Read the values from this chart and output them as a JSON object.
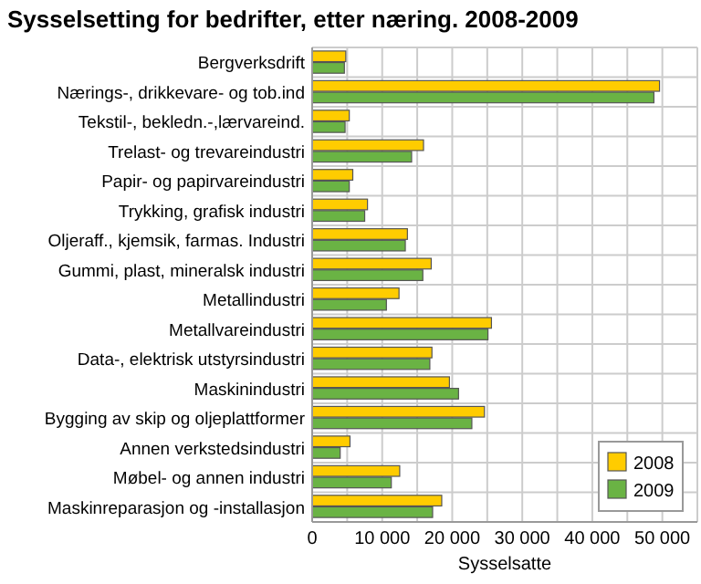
{
  "chart_data": {
    "type": "bar",
    "orientation": "horizontal",
    "title": "Sysselsetting for bedrifter, etter næring. 2008-2009",
    "xlabel": "Sysselsatte",
    "categories": [
      "Bergverksdrift",
      "Nærings-, drikkevare- og tob.ind",
      "Tekstil-, bekledn.-,lærvareind.",
      "Trelast- og trevareindustri",
      "Papir- og papirvareindustri",
      "Trykking, grafisk industri",
      "Oljeraff., kjemsik, farmas. Industri",
      "Gummi, plast, mineralsk industri",
      "Metallindustri",
      "Metallvareindustri",
      "Data-, elektrisk utstyrsindustri",
      "Maskinindustri",
      "Bygging av skip og oljeplattformer",
      "Annen verkstedsindustri",
      "Møbel- og annen industri",
      "Maskinreparasjon og -installasjon"
    ],
    "series": [
      {
        "name": "2008",
        "color": "#ffcc00",
        "values": [
          4800,
          49600,
          5300,
          15900,
          5800,
          7900,
          13600,
          17000,
          12400,
          25600,
          17100,
          19600,
          24600,
          5400,
          12500,
          18500
        ]
      },
      {
        "name": "2009",
        "color": "#6ab344",
        "values": [
          4600,
          48800,
          4700,
          14200,
          5300,
          7500,
          13300,
          15800,
          10600,
          25100,
          16800,
          20900,
          22800,
          4000,
          11300,
          17200
        ]
      }
    ],
    "xlim": [
      0,
      55000
    ],
    "xticks": [
      0,
      {
        "value": 5000,
        "label": null
      },
      {
        "value": 10000,
        "label": "10 000"
      },
      {
        "value": 15000,
        "label": null
      },
      {
        "value": 20000,
        "label": "20 000"
      },
      {
        "value": 25000,
        "label": null
      },
      {
        "value": 30000,
        "label": "30 000"
      },
      {
        "value": 35000,
        "label": null
      },
      {
        "value": 40000,
        "label": "40 000"
      },
      {
        "value": 45000,
        "label": null
      },
      {
        "value": 50000,
        "label": "50 000"
      },
      {
        "value": 55000,
        "label": null
      }
    ],
    "grid": true,
    "legend": "bottom right"
  }
}
